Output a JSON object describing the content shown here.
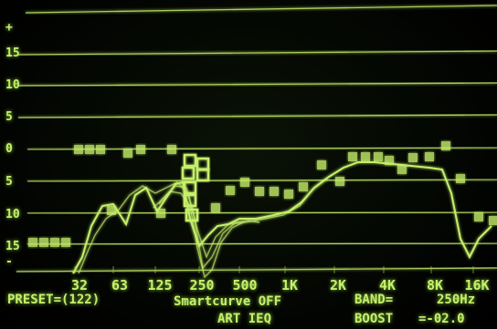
{
  "display": {
    "phosphor_color": "#c6f06a",
    "glow_color": "#9be04a",
    "background": "#000000"
  },
  "y_axis": {
    "labels": [
      "+",
      "15",
      "10",
      "5",
      "0",
      "5",
      "10",
      "15",
      "-"
    ]
  },
  "x_axis": {
    "labels": [
      "32",
      "63",
      "125",
      "250",
      "500",
      "1K",
      "2K",
      "4K",
      "8K",
      "16K"
    ]
  },
  "status": {
    "preset": "PRESET=(122)",
    "smartcurve": "Smartcurve OFF",
    "title": "ART IEQ",
    "band": "BAND=",
    "band_value": "250Hz",
    "boost": "BOOST",
    "boost_value": "=-02.0"
  }
}
